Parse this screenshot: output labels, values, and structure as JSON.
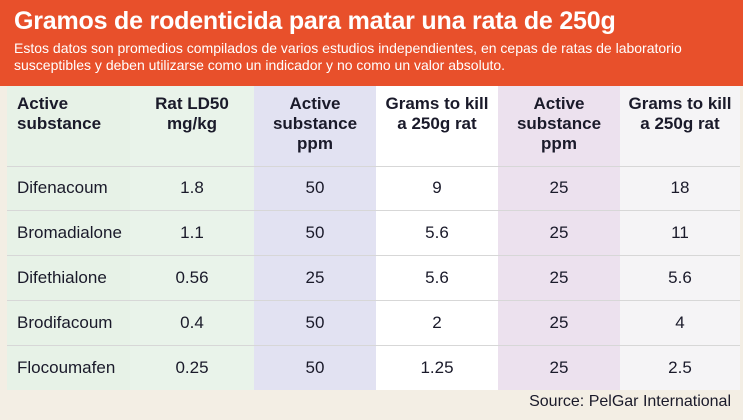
{
  "header": {
    "title": "Gramos de rodenticida para matar una rata de 250g",
    "subtitle": "Estos datos son promedios compilados de varios estudios independientes, en cepas de ratas de laboratorio susceptibles y deben utilizarse como un indicador y no como un valor absoluto."
  },
  "table": {
    "columns": [
      "Active substance",
      "Rat LD50 mg/kg",
      "Active substance ppm",
      "Grams to kill a 250g rat",
      "Active substance ppm",
      "Grams to kill a 250g rat"
    ],
    "rows": [
      [
        "Difenacoum",
        "1.8",
        "50",
        "9",
        "25",
        "18"
      ],
      [
        "Bromadialone",
        "1.1",
        "50",
        "5.6",
        "25",
        "11"
      ],
      [
        "Difethialone",
        "0.56",
        "25",
        "5.6",
        "25",
        "5.6"
      ],
      [
        "Brodifacoum",
        "0.4",
        "50",
        "2",
        "25",
        "4"
      ],
      [
        "Flocoumafen",
        "0.25",
        "50",
        "1.25",
        "25",
        "2.5"
      ]
    ]
  },
  "footer": {
    "source": "Source: PelGar International"
  },
  "colors": {
    "header_bg": "#e8502b",
    "col_green": "#e7f2e7",
    "col_lavender": "#e2e2f2",
    "col_purple": "#ece1ee"
  }
}
